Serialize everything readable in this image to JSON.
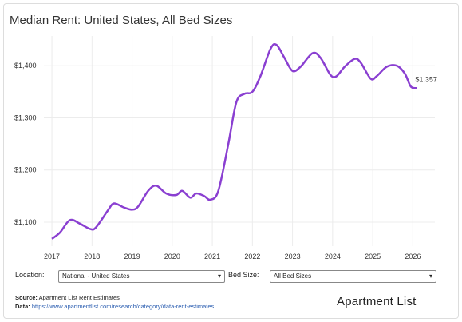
{
  "chart_data": {
    "type": "line",
    "title": "Median Rent: United States, All Bed Sizes",
    "x": [
      2017.0,
      2017.2,
      2017.45,
      2017.7,
      2017.95,
      2018.1,
      2018.4,
      2018.55,
      2018.8,
      2019.0,
      2019.15,
      2019.4,
      2019.6,
      2019.85,
      2020.1,
      2020.25,
      2020.45,
      2020.6,
      2020.8,
      2020.95,
      2021.15,
      2021.4,
      2021.6,
      2021.8,
      2022.0,
      2022.2,
      2022.45,
      2022.6,
      2022.8,
      2023.0,
      2023.2,
      2023.5,
      2023.7,
      2023.95,
      2024.1,
      2024.3,
      2024.55,
      2024.7,
      2024.95,
      2025.1,
      2025.35,
      2025.6,
      2025.8,
      2025.95,
      2026.1
    ],
    "series": [
      {
        "color": "#8a3fd1",
        "values": [
          1068,
          1080,
          1104,
          1097,
          1087,
          1090,
          1123,
          1136,
          1128,
          1124,
          1130,
          1160,
          1170,
          1155,
          1152,
          1160,
          1147,
          1155,
          1150,
          1143,
          1160,
          1250,
          1330,
          1346,
          1350,
          1380,
          1432,
          1440,
          1415,
          1390,
          1398,
          1424,
          1415,
          1382,
          1380,
          1398,
          1413,
          1406,
          1375,
          1380,
          1398,
          1400,
          1385,
          1360,
          1357
        ],
        "value_labels": [
          null,
          null,
          null,
          null,
          null,
          null,
          null,
          null,
          null,
          null,
          null,
          null,
          null,
          null,
          null,
          null,
          null,
          null,
          null,
          null,
          null,
          null,
          null,
          null,
          null,
          null,
          null,
          null,
          null,
          null,
          null,
          null,
          null,
          null,
          null,
          null,
          null,
          null,
          null,
          null,
          null,
          null,
          null,
          null,
          "$1,357"
        ]
      }
    ],
    "xlim": [
      2016.8,
      2026.55
    ],
    "xticks": [
      2017,
      2018,
      2019,
      2020,
      2021,
      2022,
      2023,
      2024,
      2025,
      2026
    ],
    "ylim": [
      1054,
      1457
    ],
    "yticks": [
      {
        "value": 1100,
        "label": "$1,100"
      },
      {
        "value": 1200,
        "label": "$1,200"
      },
      {
        "value": 1300,
        "label": "$1,300"
      },
      {
        "value": 1400,
        "label": "$1,400"
      }
    ],
    "grid": true
  },
  "controls": {
    "location_label": "Location:",
    "location_value": "National - United States",
    "bed_label": "Bed Size:",
    "bed_value": "All Bed Sizes"
  },
  "footer": {
    "source_label": "Source:",
    "source_text": "Apartment List Rent Estimates",
    "data_label": "Data:",
    "data_link": "https://www.apartmentlist.com/research/category/data-rent-estimates",
    "logo": "Apartment List"
  }
}
